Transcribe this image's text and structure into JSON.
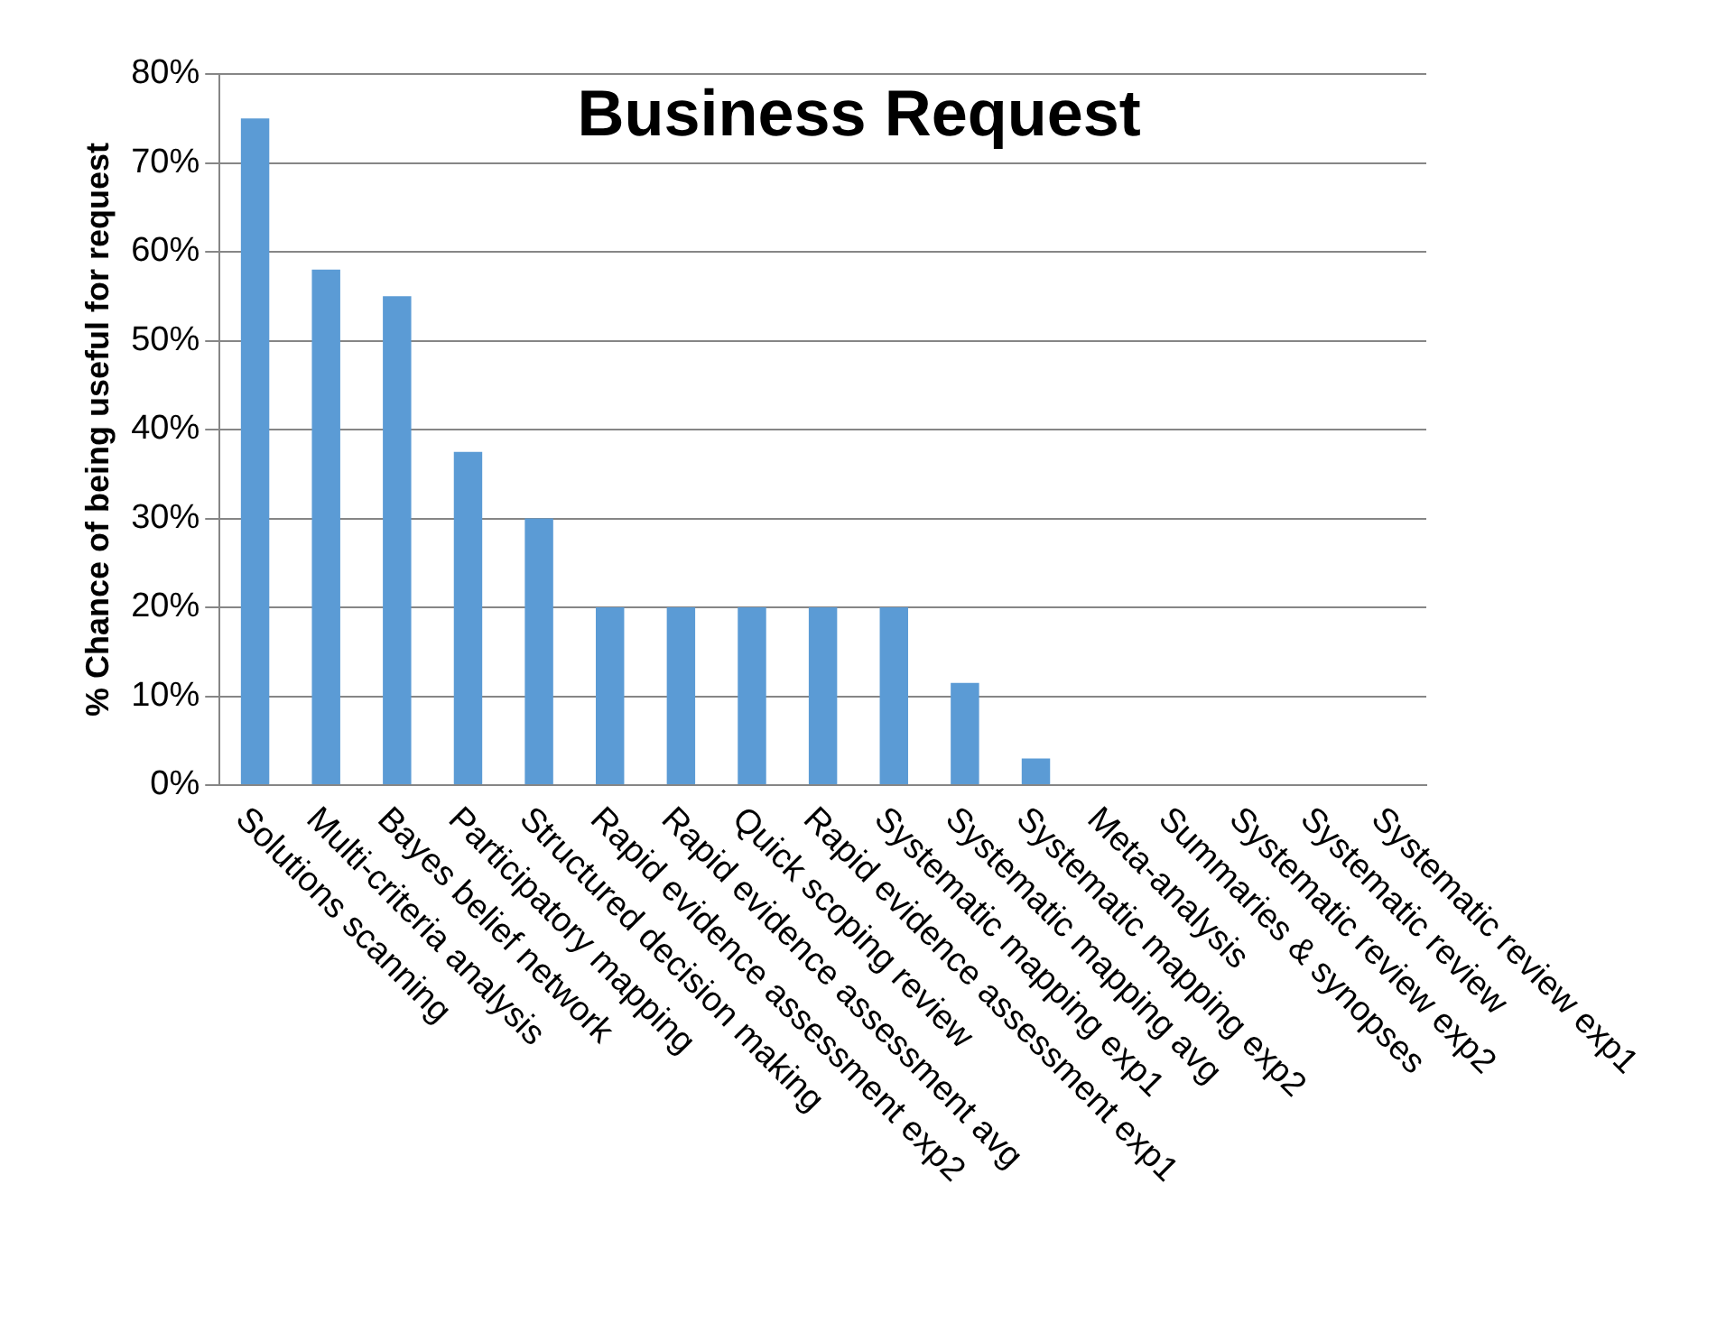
{
  "chart_data": {
    "type": "bar",
    "title": "Business Request",
    "ylabel": "% Chance of being useful for request",
    "categories": [
      "Solutions scanning",
      "Multi-criteria analysis",
      "Bayes belief network",
      "Participatory mapping",
      "Structured decision making",
      "Rapid evidence assessment exp2",
      "Rapid evidence assessment avg",
      "Quick scoping review",
      "Rapid evidence assessment exp1",
      "Systematic mapping exp1",
      "Systematic mapping avg",
      "Systematic mapping exp2",
      "Meta-analysis",
      "Summaries & synopses",
      "Systematic review exp2",
      "Systematic review",
      "Systematic review exp1"
    ],
    "values": [
      75,
      58,
      55,
      37.5,
      30,
      20,
      20,
      20,
      20,
      20,
      11.5,
      3,
      0,
      0,
      0,
      0,
      0
    ],
    "color": "#5b9bd5",
    "ylim": [
      0,
      80
    ],
    "yticks": [
      {
        "value": 0,
        "label": "0%"
      },
      {
        "value": 10,
        "label": "10%"
      },
      {
        "value": 20,
        "label": "20%"
      },
      {
        "value": 30,
        "label": "30%"
      },
      {
        "value": 40,
        "label": "40%"
      },
      {
        "value": 50,
        "label": "50%"
      },
      {
        "value": 60,
        "label": "60%"
      },
      {
        "value": 70,
        "label": "70%"
      },
      {
        "value": 80,
        "label": "80%"
      }
    ],
    "grid": "y"
  }
}
